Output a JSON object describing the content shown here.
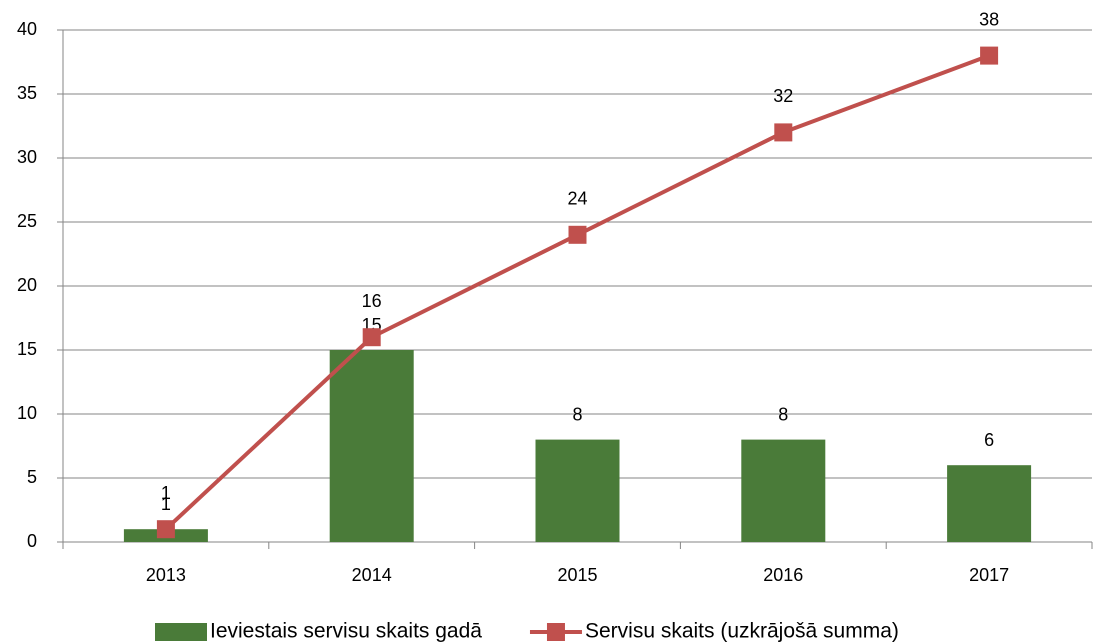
{
  "chart_data": {
    "type": "bar",
    "categories": [
      "2013",
      "2014",
      "2015",
      "2016",
      "2017"
    ],
    "series": [
      {
        "name": "Ieviestais servisu skaits gadā",
        "type": "bar",
        "color": "#4a7b39",
        "values": [
          1,
          15,
          8,
          8,
          6
        ]
      },
      {
        "name": "Servisu skaits (uzkrājošā summa)",
        "type": "line",
        "color": "#c0504d",
        "values": [
          1,
          16,
          24,
          32,
          38
        ]
      }
    ],
    "ylim": [
      0,
      40
    ],
    "yticks": [
      0,
      5,
      10,
      15,
      20,
      25,
      30,
      35,
      40
    ],
    "grid": true,
    "legend": "bottom"
  }
}
